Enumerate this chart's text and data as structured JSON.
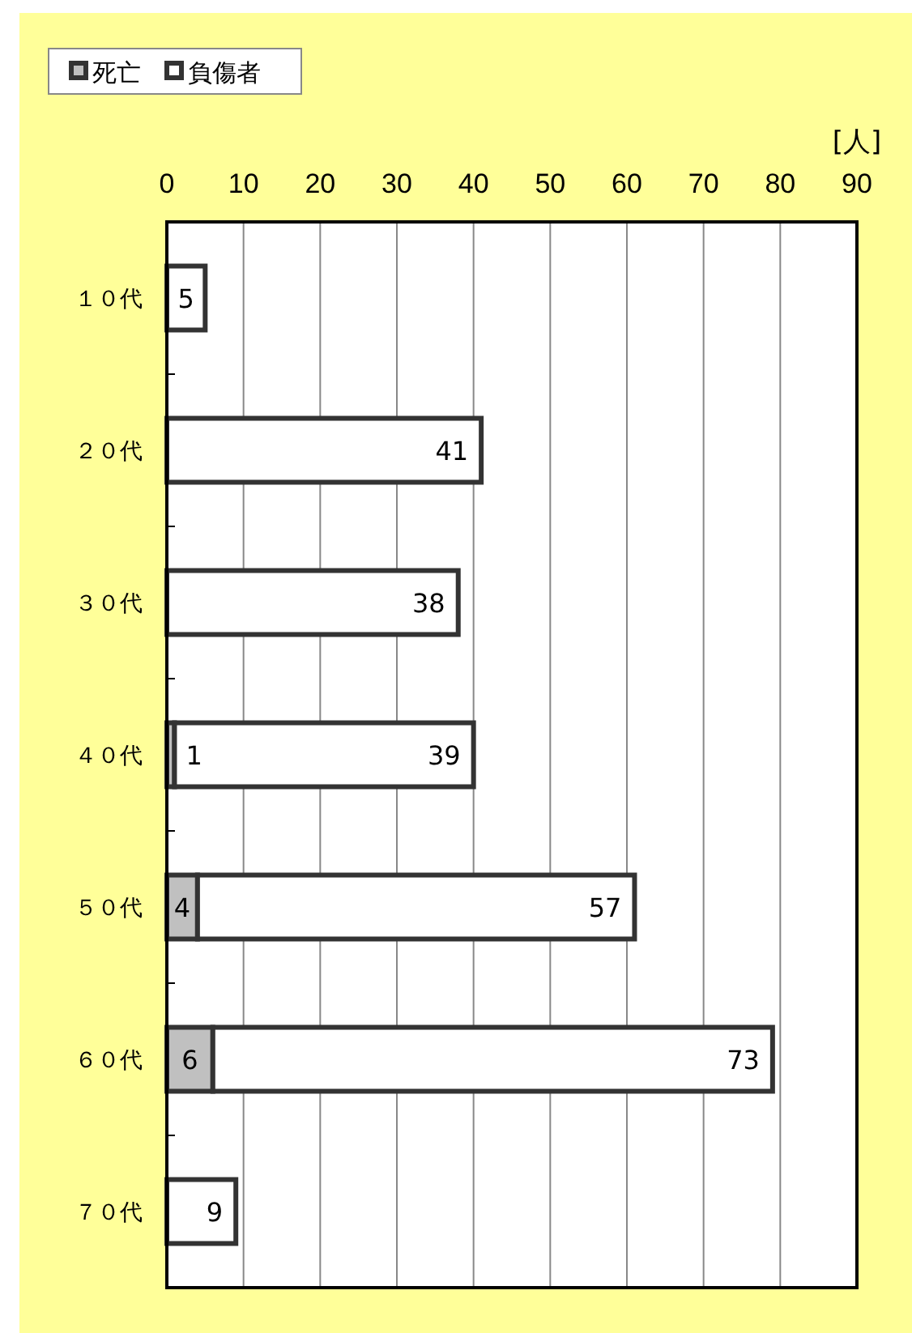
{
  "chart_data": {
    "type": "bar",
    "orientation": "horizontal",
    "stacked": true,
    "xlabel": "[人]",
    "categories": [
      "１０代",
      "２０代",
      "３０代",
      "４０代",
      "５０代",
      "６０代",
      "７０代"
    ],
    "series": [
      {
        "name": "死亡",
        "color": "#c0c0c0",
        "values": [
          0,
          0,
          0,
          1,
          4,
          6,
          0
        ],
        "value_labels": [
          null,
          null,
          null,
          "1",
          "4",
          "6",
          null
        ]
      },
      {
        "name": "負傷者",
        "color": "#ffffff",
        "values": [
          5,
          41,
          38,
          39,
          57,
          73,
          9
        ],
        "value_labels": [
          "5",
          "41",
          "38",
          "39",
          "57",
          "73",
          "9"
        ]
      }
    ],
    "xlim": [
      0,
      90
    ],
    "xticks": [
      0,
      10,
      20,
      30,
      40,
      50,
      60,
      70,
      80,
      90
    ],
    "grid": "x",
    "legend": "top left"
  }
}
